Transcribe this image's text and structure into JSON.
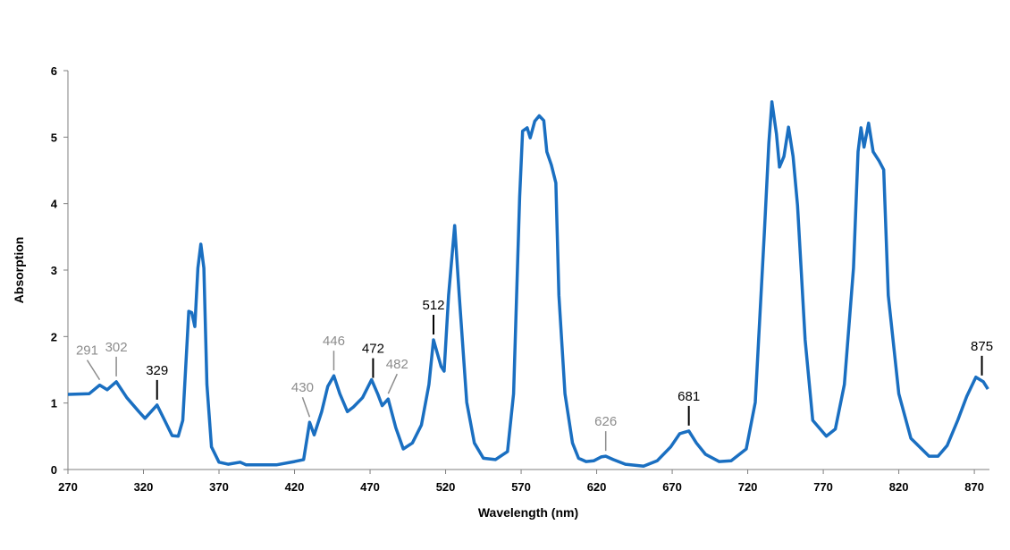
{
  "chart_data": {
    "type": "line",
    "x_label": "Wavelength (nm)",
    "y_label": "Absorption",
    "xlim": [
      270,
      880
    ],
    "ylim": [
      0,
      6
    ],
    "xticks": [
      270,
      320,
      370,
      420,
      470,
      520,
      570,
      620,
      670,
      720,
      770,
      820,
      870
    ],
    "yticks": [
      0,
      1,
      2,
      3,
      4,
      5,
      6
    ],
    "grid": false,
    "x": [
      270,
      284,
      291,
      296,
      302,
      309,
      317,
      321,
      329,
      334,
      339,
      343,
      346,
      350,
      352,
      354,
      356,
      358,
      360,
      362,
      365,
      370,
      376,
      384,
      388,
      408,
      420,
      426,
      430,
      433,
      438,
      442,
      446,
      450,
      455,
      459,
      465,
      471,
      475,
      478,
      482,
      487,
      492,
      498,
      504,
      509,
      512,
      517,
      519,
      522,
      526,
      529,
      534,
      539,
      545,
      553,
      561,
      565,
      569,
      571,
      574,
      576,
      579,
      582,
      585,
      587,
      590,
      593,
      595,
      599,
      604,
      608,
      613,
      618,
      623,
      626,
      631,
      639,
      651,
      660,
      669,
      675,
      681,
      686,
      692,
      701,
      709,
      719,
      725,
      731,
      734,
      736,
      739,
      741,
      744,
      747,
      750,
      753,
      758,
      763,
      772,
      778,
      784,
      790,
      793,
      795,
      797,
      800,
      803,
      807,
      810,
      813,
      820,
      828,
      840,
      846,
      852,
      859,
      865,
      871,
      876,
      879
    ],
    "series": [
      {
        "name": "Absorption",
        "color": "#1a6fc1",
        "values": [
          1.13,
          1.14,
          1.27,
          1.2,
          1.32,
          1.08,
          0.87,
          0.77,
          0.97,
          0.74,
          0.51,
          0.5,
          0.74,
          2.38,
          2.36,
          2.15,
          3.03,
          3.39,
          3.03,
          1.28,
          0.34,
          0.11,
          0.08,
          0.11,
          0.07,
          0.07,
          0.12,
          0.15,
          0.71,
          0.52,
          0.87,
          1.25,
          1.41,
          1.14,
          0.87,
          0.94,
          1.08,
          1.35,
          1.14,
          0.96,
          1.06,
          0.63,
          0.31,
          0.4,
          0.67,
          1.28,
          1.95,
          1.55,
          1.48,
          2.62,
          3.67,
          2.62,
          1.01,
          0.4,
          0.17,
          0.15,
          0.27,
          1.14,
          4.1,
          5.09,
          5.14,
          4.99,
          5.24,
          5.32,
          5.25,
          4.78,
          4.58,
          4.31,
          2.62,
          1.14,
          0.4,
          0.17,
          0.12,
          0.13,
          0.19,
          0.2,
          0.15,
          0.08,
          0.05,
          0.13,
          0.34,
          0.54,
          0.58,
          0.4,
          0.23,
          0.12,
          0.13,
          0.31,
          1.01,
          3.57,
          4.91,
          5.53,
          5.05,
          4.55,
          4.71,
          5.15,
          4.71,
          3.97,
          1.95,
          0.74,
          0.5,
          0.61,
          1.28,
          3.03,
          4.78,
          5.14,
          4.85,
          5.21,
          4.78,
          4.64,
          4.51,
          2.62,
          1.14,
          0.47,
          0.2,
          0.2,
          0.36,
          0.74,
          1.1,
          1.39,
          1.32,
          1.21
        ]
      }
    ],
    "annotations": [
      {
        "text": "291",
        "x": 291,
        "color": "#8c8c8c"
      },
      {
        "text": "302",
        "x": 302,
        "color": "#8c8c8c"
      },
      {
        "text": "329",
        "x": 329,
        "color": "#000000"
      },
      {
        "text": "430",
        "x": 430,
        "color": "#8c8c8c"
      },
      {
        "text": "446",
        "x": 446,
        "color": "#8c8c8c"
      },
      {
        "text": "472",
        "x": 472,
        "color": "#000000"
      },
      {
        "text": "482",
        "x": 482,
        "color": "#8c8c8c"
      },
      {
        "text": "512",
        "x": 512,
        "color": "#000000"
      },
      {
        "text": "626",
        "x": 626,
        "color": "#8c8c8c"
      },
      {
        "text": "681",
        "x": 681,
        "color": "#000000"
      },
      {
        "text": "875",
        "x": 875,
        "color": "#000000"
      }
    ]
  }
}
